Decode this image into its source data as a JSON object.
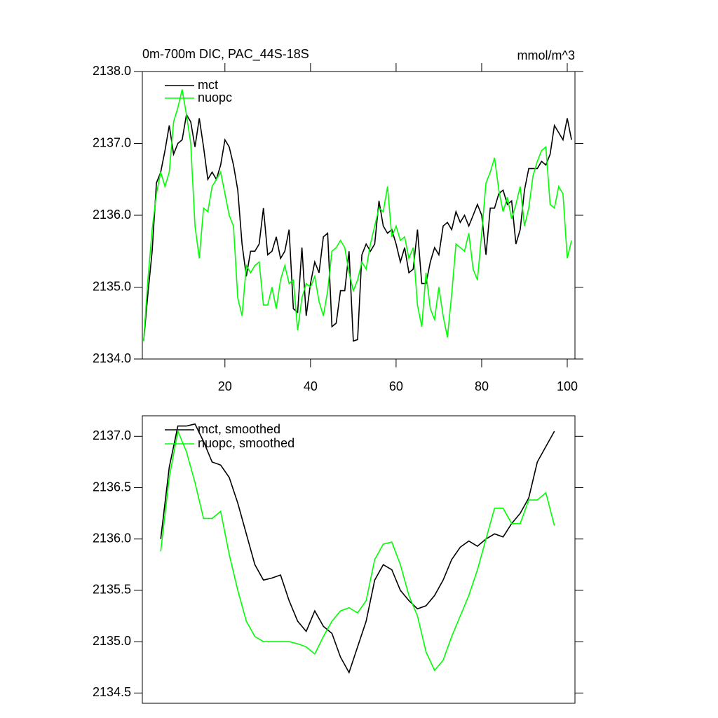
{
  "chart_data": [
    {
      "type": "line",
      "title": "0m-700m DIC, PAC_44S-18S",
      "subtitle": "mmol/m^3",
      "x": [
        1,
        2,
        3,
        4,
        5,
        6,
        7,
        8,
        9,
        10,
        11,
        12,
        13,
        14,
        15,
        16,
        17,
        18,
        19,
        20,
        21,
        22,
        23,
        24,
        25,
        26,
        27,
        28,
        29,
        30,
        31,
        32,
        33,
        34,
        35,
        36,
        37,
        38,
        39,
        40,
        41,
        42,
        43,
        44,
        45,
        46,
        47,
        48,
        49,
        50,
        51,
        52,
        53,
        54,
        55,
        56,
        57,
        58,
        59,
        60,
        61,
        62,
        63,
        64,
        65,
        66,
        67,
        68,
        69,
        70,
        71,
        72,
        73,
        74,
        75,
        76,
        77,
        78,
        79,
        80,
        81,
        82,
        83,
        84,
        85,
        86,
        87,
        88,
        89,
        90,
        91,
        92,
        93,
        94,
        95,
        96,
        97,
        98,
        99,
        100,
        101
      ],
      "series": [
        {
          "name": "mct",
          "color": "#000000",
          "values": [
            2134.25,
            2134.9,
            2135.5,
            2136.45,
            2136.6,
            2136.9,
            2137.25,
            2136.85,
            2137.0,
            2137.05,
            2137.4,
            2137.3,
            2136.95,
            2137.35,
            2136.95,
            2136.5,
            2136.6,
            2136.5,
            2136.7,
            2137.05,
            2136.95,
            2136.7,
            2136.35,
            2135.6,
            2135.15,
            2135.5,
            2135.5,
            2135.6,
            2136.1,
            2135.45,
            2135.5,
            2135.7,
            2135.4,
            2135.5,
            2135.8,
            2134.7,
            2134.65,
            2135.55,
            2134.6,
            2135.05,
            2135.35,
            2135.2,
            2135.7,
            2135.75,
            2134.45,
            2134.5,
            2134.95,
            2134.95,
            2135.5,
            2134.25,
            2134.27,
            2135.45,
            2135.6,
            2135.5,
            2135.6,
            2136.2,
            2135.85,
            2135.75,
            2135.8,
            2135.6,
            2135.35,
            2135.55,
            2135.2,
            2135.25,
            2135.8,
            2135.05,
            2135.05,
            2135.35,
            2135.55,
            2135.45,
            2135.85,
            2135.9,
            2135.8,
            2136.05,
            2135.9,
            2136.0,
            2135.85,
            2136.0,
            2136.15,
            2136.0,
            2135.45,
            2136.1,
            2136.1,
            2136.3,
            2136.35,
            2136.15,
            2136.2,
            2135.6,
            2135.8,
            2136.35,
            2136.65,
            2136.65,
            2136.65,
            2136.75,
            2136.7,
            2136.85,
            2137.25,
            2137.15,
            2137.05,
            2137.35,
            2137.05
          ]
        },
        {
          "name": "nuopc",
          "color": "#00ff00",
          "values": [
            2134.25,
            2135.1,
            2135.8,
            2136.3,
            2136.6,
            2136.4,
            2136.6,
            2137.3,
            2137.5,
            2137.75,
            2137.4,
            2137.0,
            2135.85,
            2135.4,
            2136.1,
            2136.05,
            2136.4,
            2136.5,
            2136.6,
            2136.3,
            2136.0,
            2135.85,
            2134.85,
            2134.6,
            2135.3,
            2135.2,
            2135.3,
            2135.35,
            2134.75,
            2134.75,
            2135.0,
            2134.7,
            2135.1,
            2135.3,
            2135.05,
            2135.1,
            2134.4,
            2134.85,
            2135.05,
            2135.0,
            2135.15,
            2134.8,
            2134.6,
            2134.95,
            2135.5,
            2135.55,
            2135.65,
            2135.55,
            2135.2,
            2134.95,
            2135.1,
            2135.35,
            2135.25,
            2135.6,
            2135.85,
            2136.1,
            2136.05,
            2136.4,
            2135.7,
            2135.85,
            2135.65,
            2135.7,
            2135.4,
            2135.55,
            2134.75,
            2134.45,
            2135.2,
            2134.7,
            2134.55,
            2135.0,
            2134.6,
            2134.3,
            2134.9,
            2135.6,
            2135.55,
            2135.5,
            2135.75,
            2135.25,
            2135.1,
            2135.75,
            2136.45,
            2136.6,
            2136.8,
            2136.35,
            2136.05,
            2136.25,
            2135.95,
            2136.15,
            2136.4,
            2135.85,
            2136.1,
            2136.55,
            2136.75,
            2136.9,
            2136.95,
            2136.15,
            2136.1,
            2136.4,
            2136.3,
            2135.4,
            2135.65
          ]
        }
      ],
      "xlim": [
        0.7,
        101.8
      ],
      "xticks": [
        20,
        40,
        60,
        80,
        100
      ],
      "ylim": [
        2134,
        2138
      ],
      "yticks": [
        {
          "value": 2134,
          "label": "2134.0"
        },
        {
          "value": 2135,
          "label": "2135.0"
        },
        {
          "value": 2136,
          "label": "2136.0"
        },
        {
          "value": 2137,
          "label": "2137.0"
        },
        {
          "value": 2138,
          "label": "2138.0"
        }
      ]
    },
    {
      "type": "line",
      "x": [
        5,
        7,
        9,
        11,
        13,
        15,
        17,
        19,
        21,
        23,
        25,
        27,
        29,
        31,
        33,
        35,
        37,
        39,
        41,
        43,
        45,
        47,
        49,
        51,
        53,
        55,
        57,
        59,
        61,
        63,
        65,
        67,
        69,
        71,
        73,
        75,
        77,
        79,
        81,
        83,
        85,
        87,
        89,
        91,
        93,
        95,
        97
      ],
      "series": [
        {
          "name": "mct, smoothed",
          "color": "#000000",
          "values": [
            2136.0,
            2136.7,
            2137.1,
            2137.1,
            2137.12,
            2136.95,
            2136.75,
            2136.72,
            2136.6,
            2136.35,
            2136.05,
            2135.75,
            2135.6,
            2135.62,
            2135.65,
            2135.4,
            2135.2,
            2135.1,
            2135.3,
            2135.15,
            2135.08,
            2134.85,
            2134.7,
            2134.95,
            2135.2,
            2135.6,
            2135.75,
            2135.7,
            2135.5,
            2135.4,
            2135.32,
            2135.35,
            2135.45,
            2135.6,
            2135.8,
            2135.92,
            2135.98,
            2135.93,
            2136.0,
            2136.05,
            2136.02,
            2136.15,
            2136.25,
            2136.4,
            2136.75,
            2136.9,
            2137.05
          ]
        },
        {
          "name": "nuopc, smoothed",
          "color": "#00ff00",
          "values": [
            2135.88,
            2136.6,
            2137.05,
            2136.85,
            2136.55,
            2136.2,
            2136.2,
            2136.27,
            2135.85,
            2135.5,
            2135.2,
            2135.05,
            2135.0,
            2135.0,
            2135.0,
            2135.0,
            2134.98,
            2134.95,
            2134.88,
            2135.05,
            2135.2,
            2135.3,
            2135.33,
            2135.28,
            2135.4,
            2135.8,
            2135.95,
            2135.97,
            2135.75,
            2135.45,
            2135.25,
            2134.9,
            2134.72,
            2134.82,
            2135.05,
            2135.25,
            2135.45,
            2135.7,
            2136.0,
            2136.3,
            2136.3,
            2136.15,
            2136.15,
            2136.38,
            2136.38,
            2136.45,
            2136.13
          ]
        }
      ],
      "xlim": [
        0.7,
        101.8
      ],
      "ylim": [
        2134.4,
        2137.2
      ],
      "yticks": [
        {
          "value": 2134.5,
          "label": "2134.5"
        },
        {
          "value": 2135,
          "label": "2135.0"
        },
        {
          "value": 2135.5,
          "label": "2135.5"
        },
        {
          "value": 2136,
          "label": "2136.0"
        },
        {
          "value": 2136.5,
          "label": "2136.5"
        },
        {
          "value": 2137,
          "label": "2137.0"
        }
      ]
    }
  ]
}
